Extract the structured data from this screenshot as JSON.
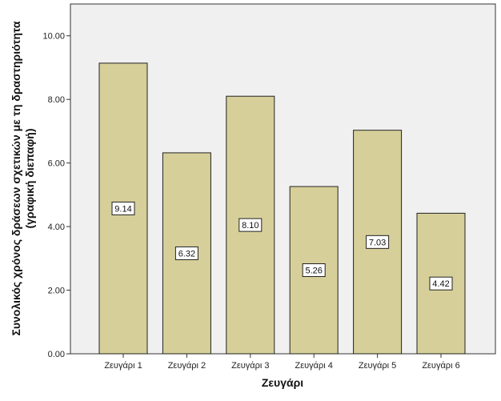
{
  "chart_data": {
    "type": "bar",
    "categories": [
      "Ζευγάρι 1",
      "Ζευγάρι 2",
      "Ζευγάρι 3",
      "Ζευγάρι 4",
      "Ζευγάρι 5",
      "Ζευγάρι 6"
    ],
    "values": [
      9.14,
      6.32,
      8.1,
      5.26,
      7.03,
      4.42
    ],
    "data_labels": [
      "9.14",
      "6.32",
      "8.10",
      "5.26",
      "7.03",
      "4.42"
    ],
    "xlabel": "Ζευγάρι",
    "ylabel_lines": [
      "Συνολικός χρόνος δράσεων σχετικών με τη δραστηριότητα",
      "(γραφική διεπαφή)"
    ],
    "ylim": [
      0,
      11
    ],
    "yticks": [
      0,
      2,
      4,
      6,
      8,
      10
    ],
    "ytick_labels": [
      "0.00",
      "2.00",
      "4.00",
      "6.00",
      "8.00",
      "10.00"
    ],
    "grid": false,
    "bar_color": "#d6cf9a",
    "plot_background": "#f0f0f0"
  }
}
